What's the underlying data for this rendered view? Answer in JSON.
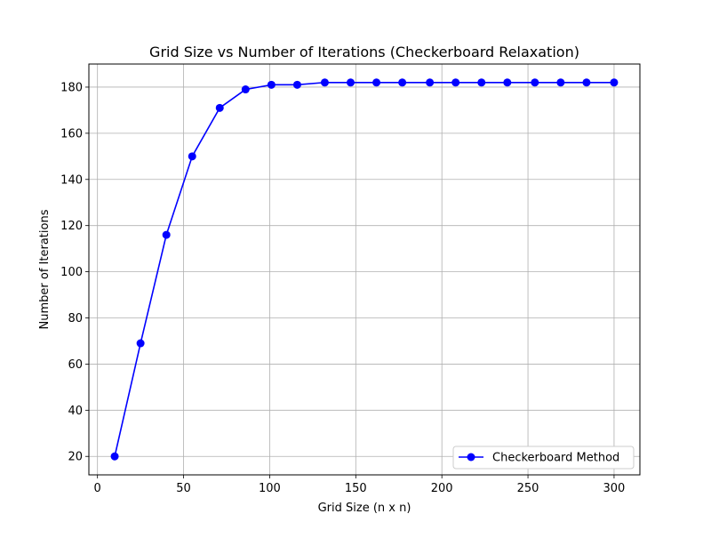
{
  "chart_data": {
    "type": "line",
    "title": "Grid Size vs Number of Iterations (Checkerboard Relaxation)",
    "xlabel": "Grid Size (n x n)",
    "ylabel": "Number of Iterations",
    "xlim": [
      -5,
      315
    ],
    "ylim": [
      12,
      190
    ],
    "xticks": [
      0,
      50,
      100,
      150,
      200,
      250,
      300
    ],
    "yticks": [
      20,
      40,
      60,
      80,
      100,
      120,
      140,
      160,
      180
    ],
    "grid": true,
    "legend_position": "lower-right",
    "series": [
      {
        "name": "Checkerboard Method",
        "color": "#0000ff",
        "marker": "circle",
        "x": [
          10,
          25,
          40,
          55,
          71,
          86,
          101,
          116,
          132,
          147,
          162,
          177,
          193,
          208,
          223,
          238,
          254,
          269,
          284,
          300
        ],
        "y": [
          20,
          69,
          116,
          150,
          171,
          179,
          181,
          181,
          182,
          182,
          182,
          182,
          182,
          182,
          182,
          182,
          182,
          182,
          182,
          182
        ]
      }
    ]
  }
}
